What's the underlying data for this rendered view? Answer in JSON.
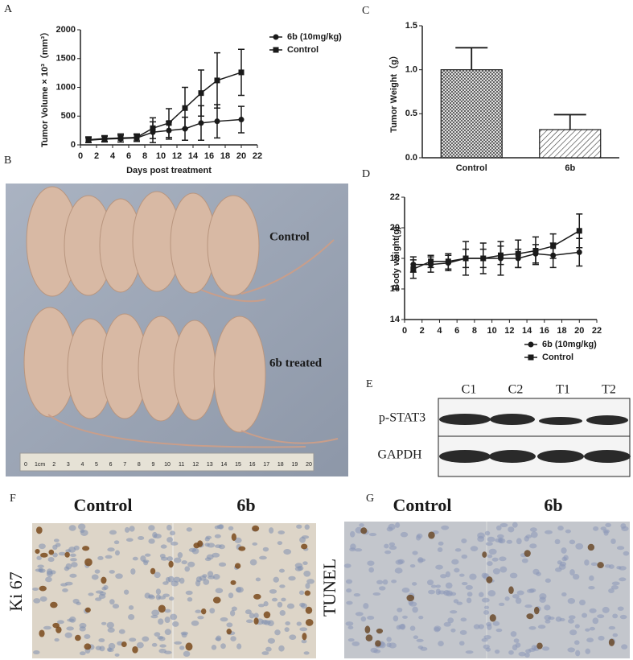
{
  "chart_data": [
    {
      "type": "line",
      "panel": "A",
      "xlabel": "Days post treatment",
      "ylabel": "Tumor Volume × 10³（mm³）",
      "x": [
        1,
        3,
        5,
        7,
        9,
        11,
        13,
        15,
        17,
        20
      ],
      "xlim": [
        0,
        22
      ],
      "xticks": [
        0,
        2,
        4,
        6,
        8,
        10,
        12,
        14,
        16,
        18,
        20,
        22
      ],
      "ylim": [
        0,
        2000
      ],
      "yticks": [
        0,
        500,
        1000,
        1500,
        2000
      ],
      "series": [
        {
          "name": "6b (10mg/kg)",
          "color": "#1a1a1a",
          "marker": "circle",
          "values": [
            80,
            100,
            110,
            120,
            220,
            250,
            280,
            380,
            410,
            440
          ],
          "errors": [
            40,
            50,
            60,
            60,
            180,
            150,
            200,
            300,
            290,
            230
          ]
        },
        {
          "name": "Control",
          "color": "#1a1a1a",
          "marker": "square",
          "values": [
            90,
            110,
            120,
            130,
            290,
            380,
            640,
            900,
            1120,
            1260
          ],
          "errors": [
            50,
            50,
            70,
            60,
            180,
            250,
            360,
            400,
            480,
            400
          ]
        }
      ]
    },
    {
      "type": "bar",
      "panel": "C",
      "ylabel": "Tumor Weight（g）",
      "categories": [
        "Control",
        "6b"
      ],
      "values": [
        1.0,
        0.32
      ],
      "errors": [
        0.25,
        0.17
      ],
      "color": "#1a1a1a",
      "hatches": [
        "cross",
        "diagonal"
      ],
      "ylim": [
        0,
        1.5
      ],
      "yticks": [
        {
          "value": 0,
          "label": "0.0"
        },
        {
          "value": 0.5,
          "label": "0.5"
        },
        {
          "value": 1,
          "label": "1.0"
        },
        {
          "value": 1.5,
          "label": "1.5"
        }
      ]
    },
    {
      "type": "line",
      "panel": "D",
      "ylabel": "Body weight(g)",
      "x": [
        1,
        3,
        5,
        7,
        9,
        11,
        13,
        15,
        17,
        20
      ],
      "xlim": [
        0,
        22
      ],
      "xticks": [
        0,
        2,
        4,
        6,
        8,
        10,
        12,
        14,
        16,
        18,
        20,
        22
      ],
      "ylim": [
        14,
        22
      ],
      "yticks": [
        14,
        16,
        18,
        20,
        22
      ],
      "series": [
        {
          "name": "6b (10mg/kg)",
          "color": "#1a1a1a",
          "marker": "circle",
          "values": [
            17.6,
            17.6,
            17.7,
            18.0,
            18.0,
            18.0,
            18.0,
            18.3,
            18.2,
            18.4
          ],
          "errors": [
            0.5,
            0.5,
            0.5,
            1.1,
            1.0,
            1.1,
            0.6,
            0.6,
            0.8,
            0.9
          ]
        },
        {
          "name": "Control",
          "color": "#1a1a1a",
          "marker": "square",
          "values": [
            17.3,
            17.8,
            17.8,
            18.0,
            18.0,
            18.2,
            18.3,
            18.5,
            18.8,
            19.8
          ],
          "errors": [
            0.6,
            0.4,
            0.5,
            0.6,
            0.6,
            0.6,
            0.9,
            0.9,
            0.8,
            1.1
          ]
        }
      ]
    }
  ],
  "panels": {
    "letters": [
      "A",
      "B",
      "C",
      "D",
      "E",
      "F",
      "G"
    ],
    "B": {
      "groups": [
        "Control",
        "6b treated"
      ],
      "ruler": [
        "0",
        "1cm",
        "2",
        "3",
        "4",
        "5",
        "6",
        "7",
        "8",
        "9",
        "10",
        "11",
        "12",
        "13",
        "14",
        "15",
        "16",
        "17",
        "18",
        "19",
        "20"
      ]
    },
    "E": {
      "lanes": [
        "C1",
        "C2",
        "T1",
        "T2"
      ],
      "proteins": [
        "p-STAT3",
        "GAPDH"
      ]
    },
    "F": {
      "columns": [
        "Control",
        "6b"
      ],
      "stain": "Ki 67"
    },
    "G": {
      "columns": [
        "Control",
        "6b"
      ],
      "stain": "TUNEL"
    }
  }
}
